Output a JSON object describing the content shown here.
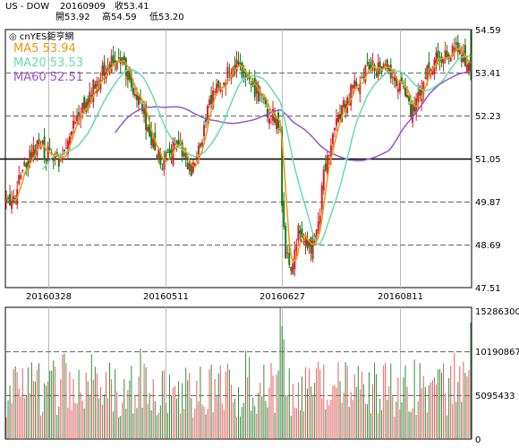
{
  "header": {
    "symbol": "US - DOW",
    "date": "20160909",
    "close": "收53.41",
    "open": "開53.92",
    "high": "高54.59",
    "low": "低53.20"
  },
  "brand": "cnYES鉅亨網",
  "colors": {
    "up": "#d8232a",
    "down": "#1a7a1a",
    "ma5": "#f0960c",
    "ma20": "#66ddaa",
    "ma60": "#9955cc",
    "grid_dash": "#777777",
    "frame": "#000000",
    "vol_up": "#e06060",
    "vol_down": "#3a8a3a"
  },
  "chart_data": [
    {
      "type": "candlestick",
      "legend": [
        {
          "name": "MA5",
          "value": "53.94"
        },
        {
          "name": "MA20",
          "value": "53.53"
        },
        {
          "name": "MA60",
          "value": "52.51"
        }
      ],
      "y_ticks": [
        "54.59",
        "53.41",
        "52.23",
        "51.05",
        "49.87",
        "48.69",
        "47.51"
      ],
      "ylim": [
        47.51,
        54.59
      ],
      "x_ticks": [
        {
          "label": "20160328",
          "index": 23
        },
        {
          "label": "20160511",
          "index": 88
        },
        {
          "label": "20160627",
          "index": 152
        },
        {
          "label": "20160811",
          "index": 217
        }
      ],
      "candles_total": 257,
      "reference_line": 51.05,
      "dashed_levels": [
        53.41,
        52.23,
        49.87,
        48.69
      ],
      "close_anchors": [
        [
          0,
          49.7
        ],
        [
          4,
          49.95
        ],
        [
          8,
          50.55
        ],
        [
          14,
          51.15
        ],
        [
          18,
          51.4
        ],
        [
          24,
          51.1
        ],
        [
          28,
          50.95
        ],
        [
          34,
          51.65
        ],
        [
          40,
          52.2
        ],
        [
          46,
          52.75
        ],
        [
          52,
          53.4
        ],
        [
          57,
          53.75
        ],
        [
          62,
          53.95
        ],
        [
          66,
          53.55
        ],
        [
          70,
          53.05
        ],
        [
          74,
          52.45
        ],
        [
          78,
          51.95
        ],
        [
          82,
          51.3
        ],
        [
          86,
          50.9
        ],
        [
          90,
          51.05
        ],
        [
          94,
          51.65
        ],
        [
          98,
          51.2
        ],
        [
          102,
          50.6
        ],
        [
          107,
          51.5
        ],
        [
          112,
          52.55
        ],
        [
          117,
          52.95
        ],
        [
          122,
          53.4
        ],
        [
          126,
          53.65
        ],
        [
          130,
          53.35
        ],
        [
          135,
          53.1
        ],
        [
          140,
          52.75
        ],
        [
          144,
          52.4
        ],
        [
          148,
          52.1
        ],
        [
          151,
          51.6
        ],
        [
          152,
          49.6
        ],
        [
          154,
          48.4
        ],
        [
          157,
          48.1
        ],
        [
          160,
          48.9
        ],
        [
          163,
          49.1
        ],
        [
          166,
          48.8
        ],
        [
          169,
          48.6
        ],
        [
          172,
          49.1
        ],
        [
          175,
          50.6
        ],
        [
          179,
          51.55
        ],
        [
          183,
          52.25
        ],
        [
          187,
          52.55
        ],
        [
          191,
          52.95
        ],
        [
          195,
          53.3
        ],
        [
          199,
          53.65
        ],
        [
          203,
          53.55
        ],
        [
          207,
          53.4
        ],
        [
          211,
          53.45
        ],
        [
          215,
          53.25
        ],
        [
          218,
          53.0
        ],
        [
          221,
          52.55
        ],
        [
          224,
          52.35
        ],
        [
          227,
          52.85
        ],
        [
          230,
          53.25
        ],
        [
          234,
          53.55
        ],
        [
          238,
          53.85
        ],
        [
          242,
          53.95
        ],
        [
          246,
          54.05
        ],
        [
          250,
          53.9
        ],
        [
          253,
          53.75
        ],
        [
          256,
          53.41
        ]
      ],
      "last_candle": {
        "open": 53.92,
        "high": 54.59,
        "low": 53.2,
        "close": 53.41
      }
    },
    {
      "type": "bar",
      "name": "volume",
      "y_ticks": [
        "15286300",
        "10190867",
        "5095433",
        "0"
      ],
      "ylim": [
        0,
        15286300
      ],
      "dashed_levels": [
        10190867,
        5095433
      ],
      "spikes": [
        {
          "index": 151,
          "value": 15286300
        },
        {
          "index": 152,
          "value": 13100000
        },
        {
          "index": 153,
          "value": 11600000
        },
        {
          "index": 256,
          "value": 13500000
        }
      ]
    }
  ]
}
